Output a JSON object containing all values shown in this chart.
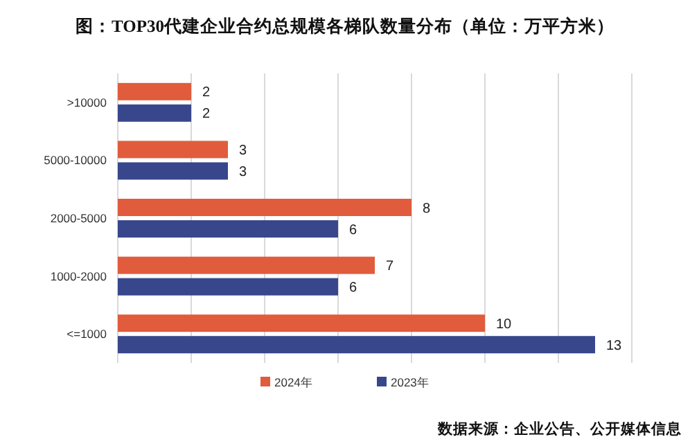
{
  "chart_data": {
    "type": "bar",
    "orientation": "horizontal",
    "title": "图：TOP30代建企业合约总规模各梯队数量分布（单位：万平方米）",
    "categories": [
      ">10000",
      "5000-10000",
      "2000-5000",
      "1000-2000",
      "<=1000"
    ],
    "series": [
      {
        "name": "2024年",
        "color": "#e05c3c",
        "values": [
          2,
          3,
          8,
          7,
          10
        ]
      },
      {
        "name": "2023年",
        "color": "#38478c",
        "values": [
          2,
          3,
          6,
          6,
          13
        ]
      }
    ],
    "xlim": [
      0,
      14
    ],
    "xticks": [
      {
        "value": 0,
        "label": null
      },
      {
        "value": 2,
        "label": null
      },
      {
        "value": 4,
        "label": null
      },
      {
        "value": 6,
        "label": null
      },
      {
        "value": 8,
        "label": null
      },
      {
        "value": 10,
        "label": null
      },
      {
        "value": 12,
        "label": null
      },
      {
        "value": 14,
        "label": null
      }
    ],
    "tick_labels": "y",
    "grid": "x",
    "data_labels": true,
    "legend": "bottom",
    "annotations": [
      "数据来源：企业公告、公开媒体信息"
    ]
  }
}
